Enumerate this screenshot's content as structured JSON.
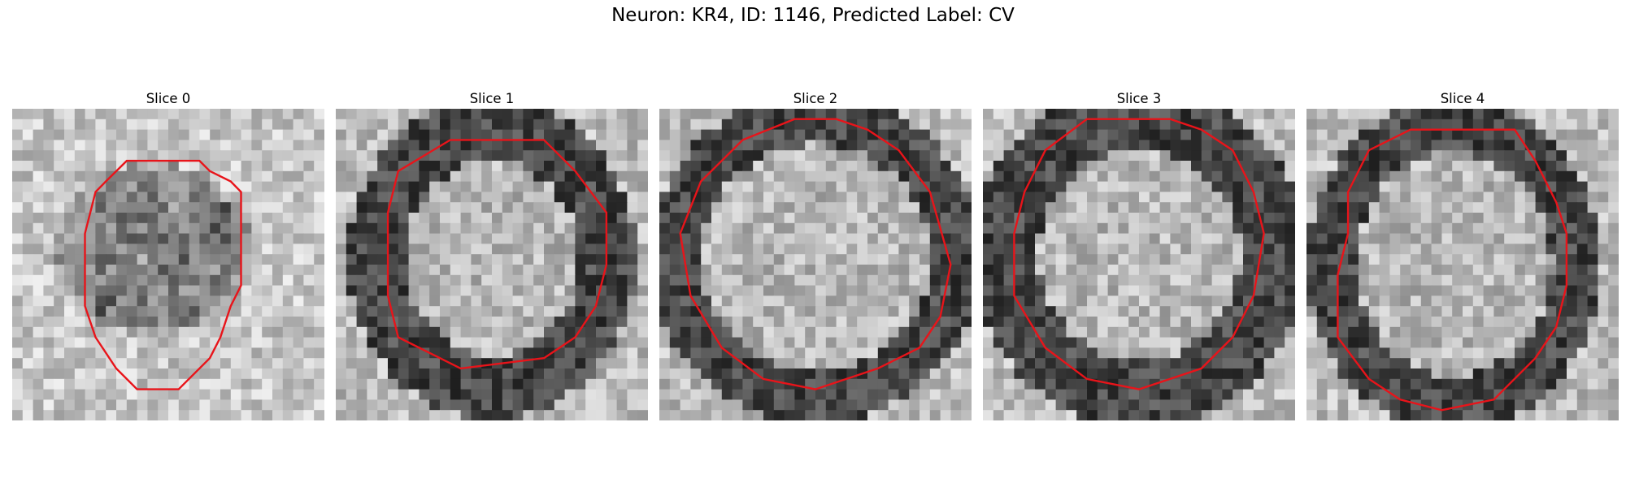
{
  "figure": {
    "title": "Neuron: KR4, ID: 1146, Predicted Label: CV"
  },
  "panels": [
    {
      "title": "Slice 0",
      "contour_color": "#e8141a",
      "contour": [
        [
          0.367,
          0.167
        ],
        [
          0.6,
          0.167
        ],
        [
          0.633,
          0.2
        ],
        [
          0.7,
          0.233
        ],
        [
          0.733,
          0.267
        ],
        [
          0.733,
          0.567
        ],
        [
          0.7,
          0.633
        ],
        [
          0.667,
          0.733
        ],
        [
          0.633,
          0.8
        ],
        [
          0.533,
          0.9
        ],
        [
          0.4,
          0.9
        ],
        [
          0.367,
          0.867
        ],
        [
          0.333,
          0.833
        ],
        [
          0.267,
          0.733
        ],
        [
          0.233,
          0.633
        ],
        [
          0.233,
          0.4
        ],
        [
          0.267,
          0.267
        ],
        [
          0.3,
          0.233
        ]
      ]
    },
    {
      "title": "Slice 1",
      "contour_color": "#e8141a",
      "contour": [
        [
          0.367,
          0.1
        ],
        [
          0.667,
          0.1
        ],
        [
          0.767,
          0.2
        ],
        [
          0.867,
          0.333
        ],
        [
          0.867,
          0.5
        ],
        [
          0.833,
          0.633
        ],
        [
          0.767,
          0.733
        ],
        [
          0.667,
          0.8
        ],
        [
          0.4,
          0.833
        ],
        [
          0.2,
          0.733
        ],
        [
          0.167,
          0.6
        ],
        [
          0.167,
          0.333
        ],
        [
          0.2,
          0.2
        ]
      ]
    },
    {
      "title": "Slice 2",
      "contour_color": "#e8141a",
      "contour": [
        [
          0.433,
          0.033
        ],
        [
          0.567,
          0.033
        ],
        [
          0.667,
          0.067
        ],
        [
          0.767,
          0.133
        ],
        [
          0.867,
          0.267
        ],
        [
          0.933,
          0.5
        ],
        [
          0.9,
          0.667
        ],
        [
          0.833,
          0.767
        ],
        [
          0.7,
          0.833
        ],
        [
          0.5,
          0.9
        ],
        [
          0.333,
          0.867
        ],
        [
          0.2,
          0.767
        ],
        [
          0.1,
          0.6
        ],
        [
          0.067,
          0.4
        ],
        [
          0.133,
          0.233
        ],
        [
          0.267,
          0.1
        ]
      ]
    },
    {
      "title": "Slice 3",
      "contour_color": "#e8141a",
      "contour": [
        [
          0.333,
          0.033
        ],
        [
          0.6,
          0.033
        ],
        [
          0.7,
          0.067
        ],
        [
          0.8,
          0.133
        ],
        [
          0.867,
          0.267
        ],
        [
          0.9,
          0.4
        ],
        [
          0.867,
          0.6
        ],
        [
          0.8,
          0.733
        ],
        [
          0.7,
          0.833
        ],
        [
          0.5,
          0.9
        ],
        [
          0.333,
          0.867
        ],
        [
          0.2,
          0.767
        ],
        [
          0.1,
          0.6
        ],
        [
          0.1,
          0.4
        ],
        [
          0.133,
          0.267
        ],
        [
          0.2,
          0.133
        ]
      ]
    },
    {
      "title": "Slice 4",
      "contour_color": "#e8141a",
      "contour": [
        [
          0.333,
          0.067
        ],
        [
          0.667,
          0.067
        ],
        [
          0.733,
          0.167
        ],
        [
          0.8,
          0.3
        ],
        [
          0.833,
          0.4
        ],
        [
          0.833,
          0.567
        ],
        [
          0.8,
          0.7
        ],
        [
          0.733,
          0.8
        ],
        [
          0.6,
          0.933
        ],
        [
          0.433,
          0.967
        ],
        [
          0.3,
          0.933
        ],
        [
          0.2,
          0.867
        ],
        [
          0.1,
          0.733
        ],
        [
          0.1,
          0.533
        ],
        [
          0.133,
          0.4
        ],
        [
          0.133,
          0.267
        ],
        [
          0.2,
          0.133
        ]
      ]
    }
  ]
}
